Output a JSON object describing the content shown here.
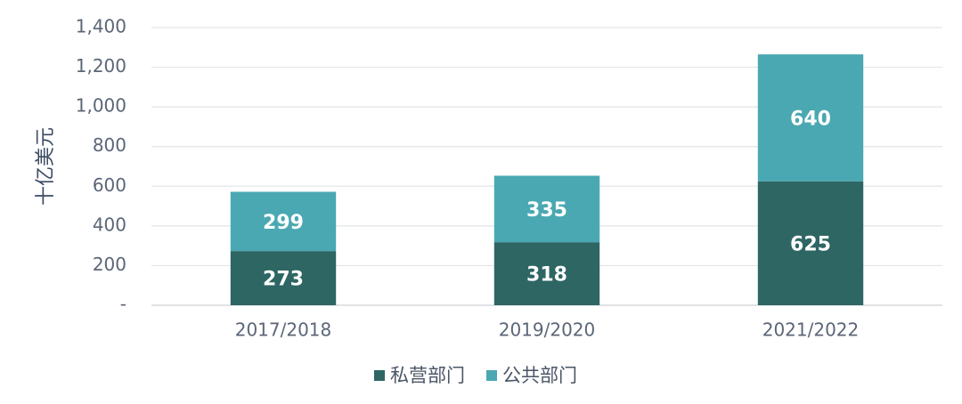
{
  "chart_data": {
    "type": "stacked-bar",
    "y_label": "十亿美元",
    "categories": [
      "2017/2018",
      "2019/2020",
      "2021/2022"
    ],
    "series": [
      {
        "name": "私营部门",
        "color": "#2e6664",
        "values": [
          273,
          318,
          625
        ]
      },
      {
        "name": "公共部门",
        "color": "#4aa8b2",
        "values": [
          299,
          335,
          640
        ]
      }
    ],
    "ylim": [
      0,
      1400
    ],
    "yticks": [
      {
        "value": 0,
        "label": "-"
      },
      200,
      400,
      600,
      800,
      {
        "value": 1000,
        "label": "1,000"
      },
      {
        "value": 1200,
        "label": "1,200"
      },
      {
        "value": 1400,
        "label": "1,400"
      }
    ],
    "grid": true,
    "legend": "bottom"
  }
}
